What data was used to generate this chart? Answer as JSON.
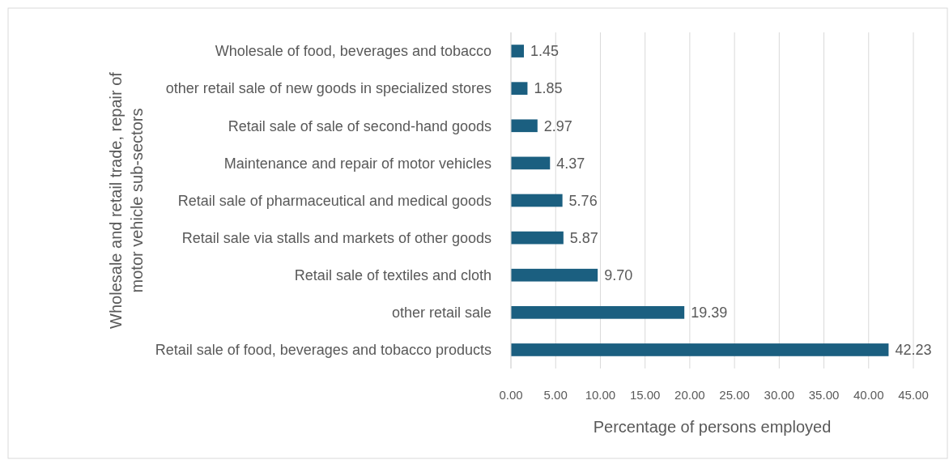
{
  "chart_data": {
    "type": "bar",
    "orientation": "horizontal",
    "ylabel": "Wholesale and retail trade, repair of motor vehicle sub-sectors",
    "xlabel": "Percentage of persons employed",
    "categories": [
      "Wholesale of food, beverages and tobacco",
      "other retail sale of new goods in specialized stores",
      "Retail sale of sale of second-hand goods",
      "Maintenance and repair of motor vehicles",
      "Retail sale of pharmaceutical and medical goods",
      "Retail sale via stalls and markets of other goods",
      "Retail sale of textiles and cloth",
      "other retail sale",
      "Retail sale of food, beverages and tobacco products"
    ],
    "values": [
      1.45,
      1.85,
      2.97,
      4.37,
      5.76,
      5.87,
      9.7,
      19.39,
      42.23
    ],
    "value_labels": [
      "1.45",
      "1.85",
      "2.97",
      "4.37",
      "5.76",
      "5.87",
      "9.70",
      "19.39",
      "42.23"
    ],
    "color": "#1b5f80",
    "xlim": [
      0,
      45
    ],
    "xticks": [
      {
        "value": 0,
        "label": "0.00"
      },
      {
        "value": 5,
        "label": "5.00"
      },
      {
        "value": 10,
        "label": "10.00"
      },
      {
        "value": 15,
        "label": "15.00"
      },
      {
        "value": 20,
        "label": "20.00"
      },
      {
        "value": 25,
        "label": "25.00"
      },
      {
        "value": 30,
        "label": "30.00"
      },
      {
        "value": 35,
        "label": "35.00"
      },
      {
        "value": 40,
        "label": "40.00"
      },
      {
        "value": 45,
        "label": "45.00"
      }
    ],
    "grid": "x"
  }
}
